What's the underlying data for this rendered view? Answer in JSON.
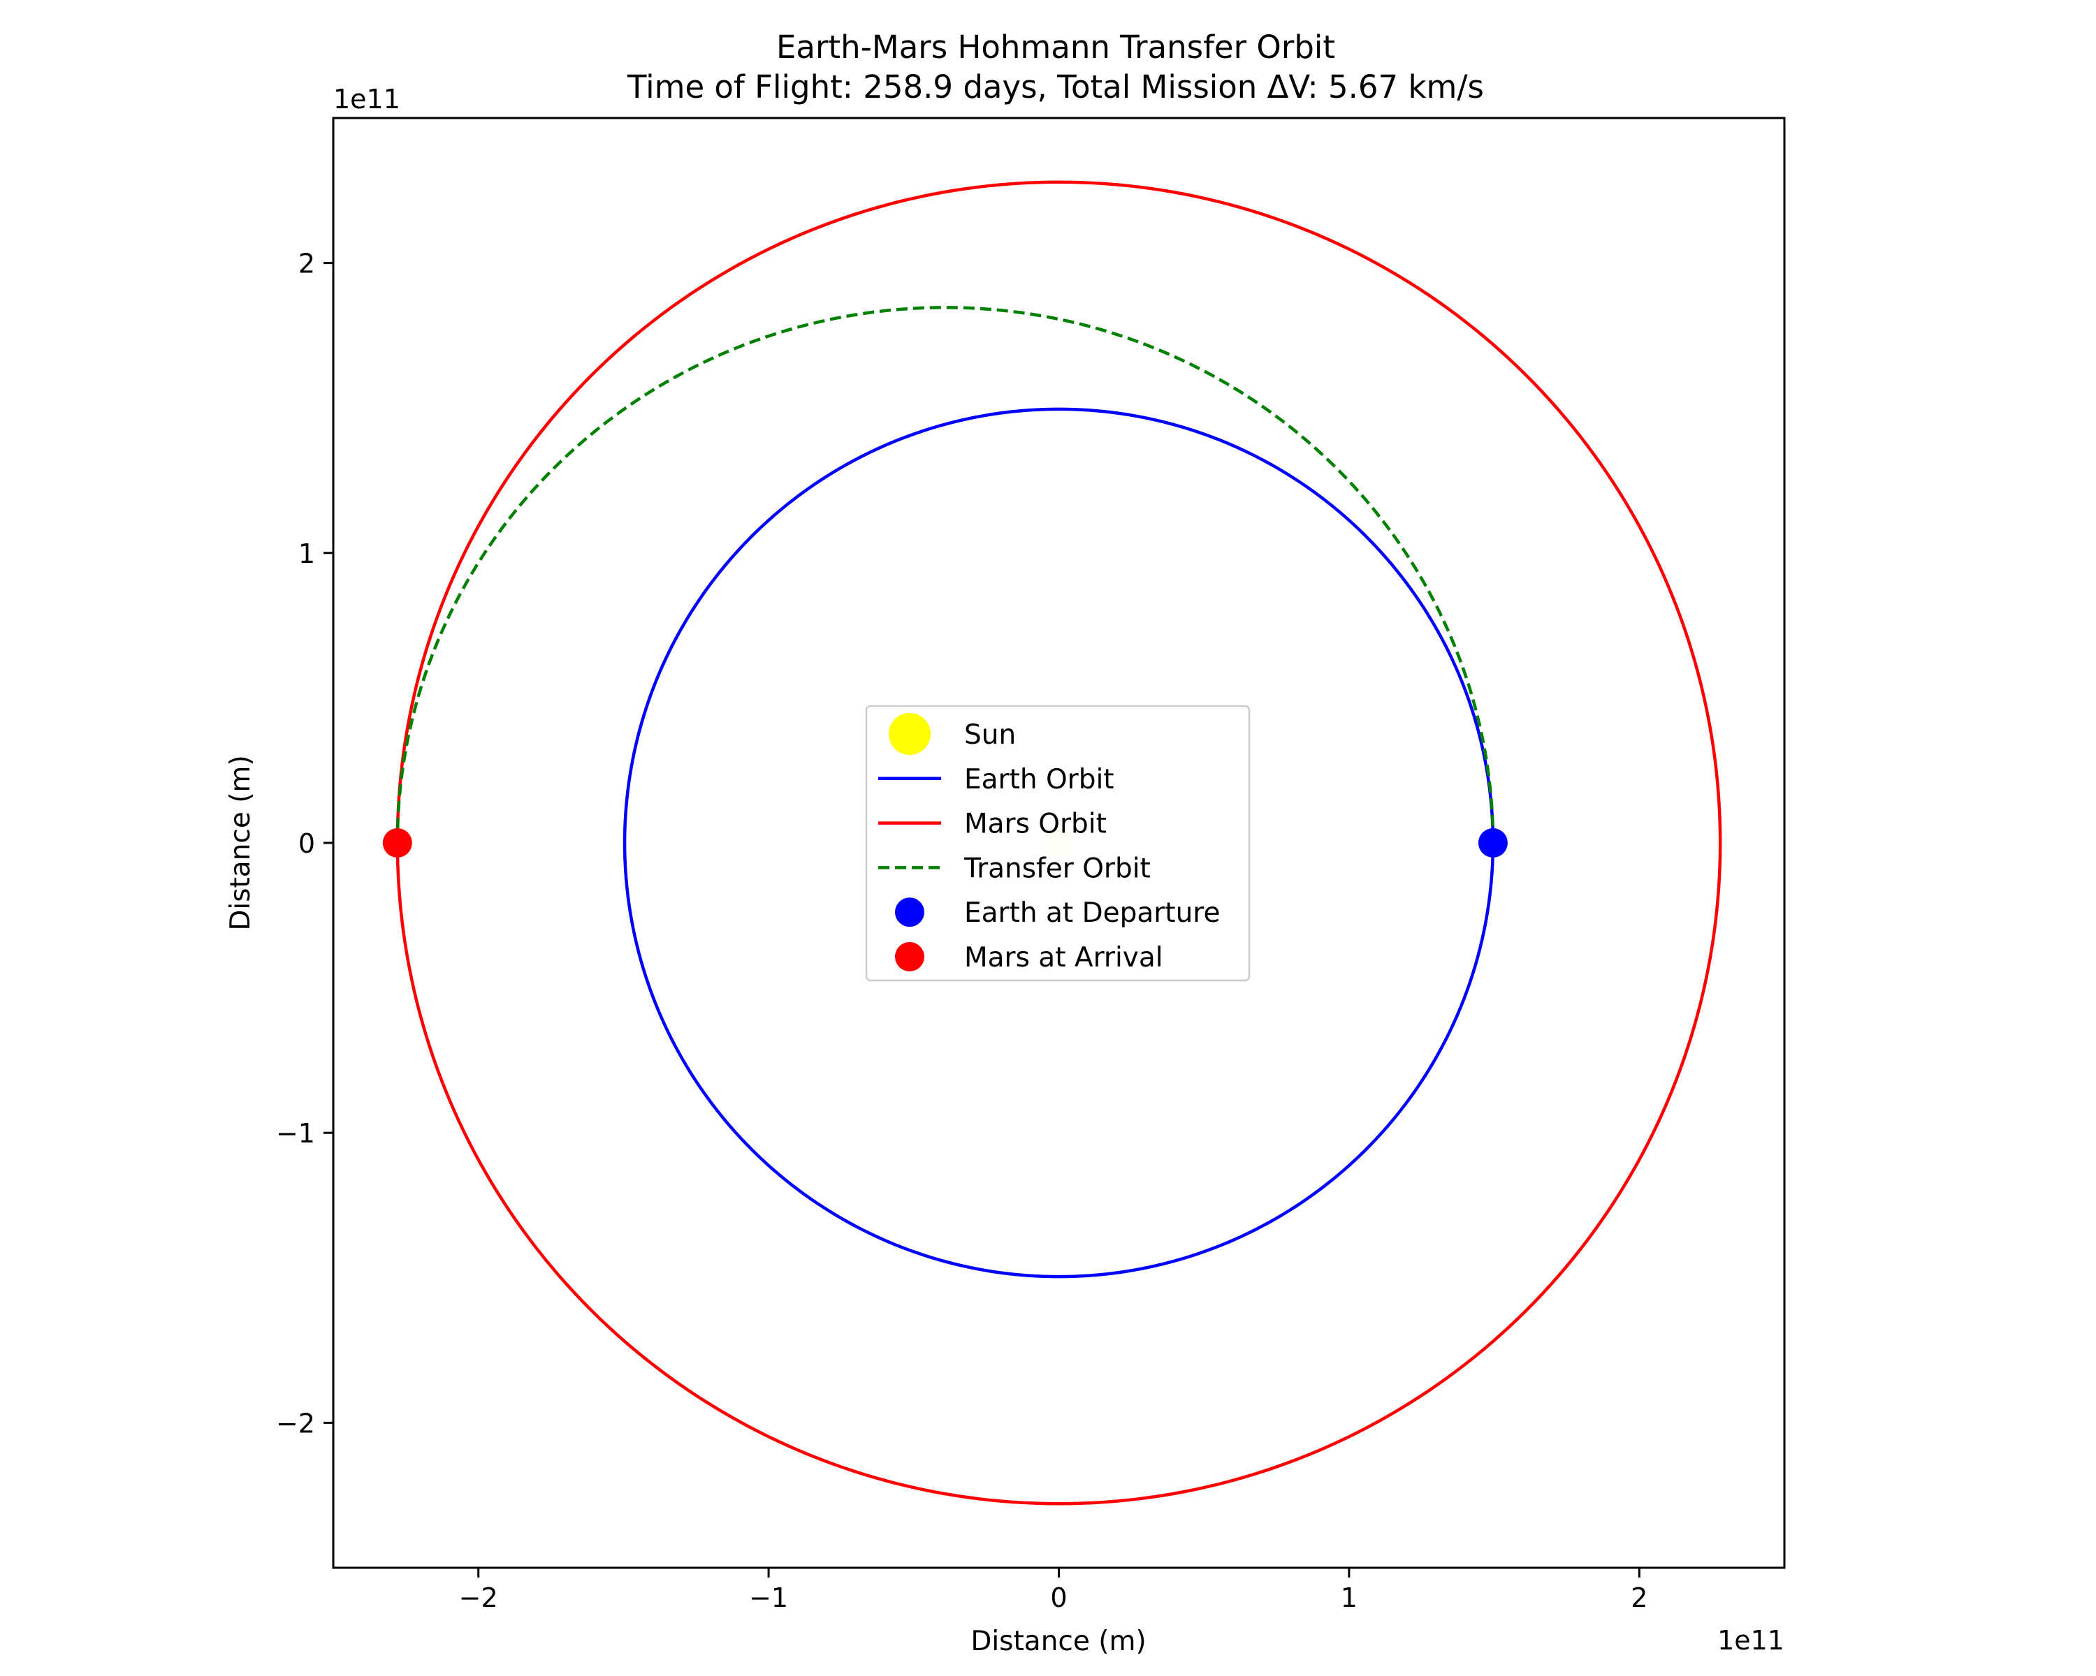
{
  "chart_data": {
    "type": "line",
    "title": "Earth-Mars Hohmann Transfer Orbit",
    "subtitle": "Time of Flight: 258.9 days, Total Mission ΔV: 5.67 km/s",
    "xlabel": "Distance (m)",
    "ylabel": "Distance (m)",
    "x_offset_label": "1e11",
    "y_offset_label": "1e11",
    "xlim": [
      -250000000000.0,
      250000000000.0
    ],
    "ylim": [
      -250000000000.0,
      250000000000.0
    ],
    "x_ticks": [
      {
        "value": -200000000000.0,
        "label": "−2"
      },
      {
        "value": -100000000000.0,
        "label": "−1"
      },
      {
        "value": 0,
        "label": "0"
      },
      {
        "value": 100000000000.0,
        "label": "1"
      },
      {
        "value": 200000000000.0,
        "label": "2"
      }
    ],
    "y_ticks": [
      {
        "value": -200000000000.0,
        "label": "−2"
      },
      {
        "value": -100000000000.0,
        "label": "−1"
      },
      {
        "value": 0,
        "label": "0"
      },
      {
        "value": 100000000000.0,
        "label": "1"
      },
      {
        "value": 200000000000.0,
        "label": "2"
      }
    ],
    "grid": false,
    "legend_position": "center",
    "series": [
      {
        "name": "Earth Orbit",
        "kind": "circle",
        "center": [
          0,
          0
        ],
        "radius": 149600000000.0,
        "color": "#0000ff",
        "style": "solid"
      },
      {
        "name": "Mars Orbit",
        "kind": "circle",
        "center": [
          0,
          0
        ],
        "radius": 227900000000.0,
        "color": "#ff0000",
        "style": "solid"
      },
      {
        "name": "Transfer Orbit",
        "kind": "half-ellipse",
        "center": [
          -39150000000.0,
          0
        ],
        "semi_major": 188750000000.0,
        "semi_minor": 184650000000.0,
        "color": "#008000",
        "style": "dashed"
      }
    ],
    "markers": [
      {
        "name": "Sun",
        "x": 0,
        "y": 0,
        "color": "#ffff00",
        "alpha": 0.2
      },
      {
        "name": "Earth at Departure",
        "x": 149600000000.0,
        "y": 0,
        "color": "#0000ff",
        "alpha": 1
      },
      {
        "name": "Mars at Arrival",
        "x": -227900000000.0,
        "y": 0,
        "color": "#ff0000",
        "alpha": 1
      }
    ],
    "legend": [
      {
        "label": "Sun",
        "kind": "marker",
        "color": "#ffff00"
      },
      {
        "label": "Earth Orbit",
        "kind": "line",
        "color": "#0000ff"
      },
      {
        "label": "Mars Orbit",
        "kind": "line",
        "color": "#ff0000"
      },
      {
        "label": "Transfer Orbit",
        "kind": "dashed",
        "color": "#008000"
      },
      {
        "label": "Earth at Departure",
        "kind": "marker",
        "color": "#0000ff"
      },
      {
        "label": "Mars at Arrival",
        "kind": "marker",
        "color": "#ff0000"
      }
    ]
  }
}
